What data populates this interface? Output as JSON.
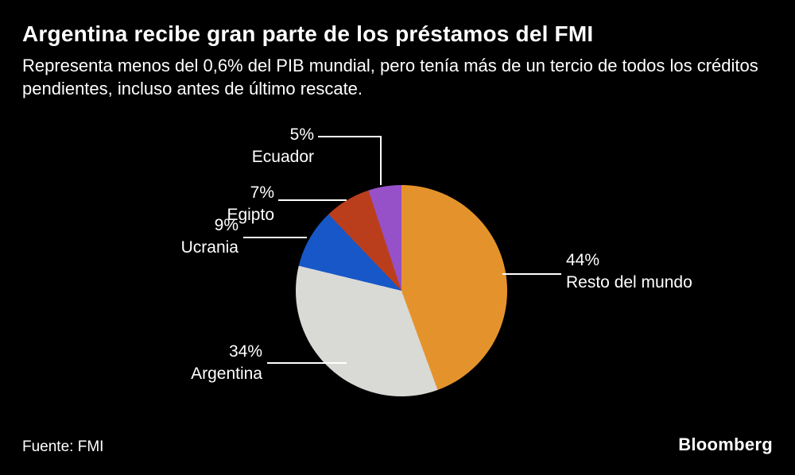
{
  "header": {
    "title": "Argentina recibe gran parte de los préstamos del FMI",
    "subtitle": "Representa menos del 0,6% del PIB mundial, pero tenía más de un tercio de todos los créditos pendientes, incluso antes de último rescate."
  },
  "chart_data": {
    "type": "pie",
    "title": "Argentina recibe gran parte de los préstamos del FMI",
    "subtitle": "Representa menos del 0,6% del PIB mundial, pero tenía más de un tercio de todos los créditos pendientes, incluso antes de último rescate.",
    "start_angle_deg": 0,
    "direction": "clockwise",
    "legend_position": "none",
    "labels_style": "leader-lines",
    "slices": [
      {
        "label": "Resto del mundo",
        "value": 44,
        "display": "44%",
        "color": "#E4932C"
      },
      {
        "label": "Argentina",
        "value": 34,
        "display": "34%",
        "color": "#D9D9D6"
      },
      {
        "label": "Ucrania",
        "value": 9,
        "display": "9%",
        "color": "#1757C8"
      },
      {
        "label": "Egipto",
        "value": 7,
        "display": "7%",
        "color": "#BB3E1C"
      },
      {
        "label": "Ecuador",
        "value": 5,
        "display": "5%",
        "color": "#9651C9"
      }
    ]
  },
  "footer": {
    "source": "Fuente: FMI",
    "brand": "Bloomberg"
  },
  "colors": {
    "background": "#000000",
    "text": "#FFFFFF",
    "leader_line": "#FFFFFF"
  }
}
